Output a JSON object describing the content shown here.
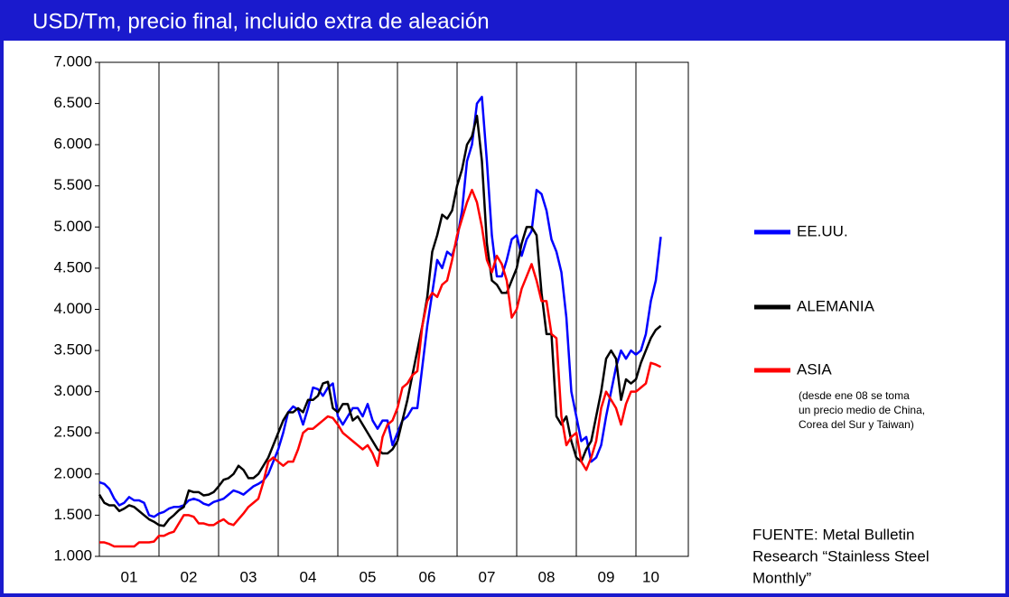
{
  "chart_data": {
    "type": "line",
    "title": "USD/Tm, precio final, incluido extra de aleación",
    "categories": [
      null,
      null,
      null,
      null,
      null,
      null,
      "01",
      null,
      null,
      null,
      null,
      null,
      null,
      null,
      null,
      null,
      null,
      null,
      "02",
      null,
      null,
      null,
      null,
      null,
      null,
      null,
      null,
      null,
      null,
      null,
      "03",
      null,
      null,
      null,
      null,
      null,
      null,
      null,
      null,
      null,
      null,
      null,
      "04",
      null,
      null,
      null,
      null,
      null,
      null,
      null,
      null,
      null,
      null,
      null,
      "05",
      null,
      null,
      null,
      null,
      null,
      null,
      null,
      null,
      null,
      null,
      null,
      "06",
      null,
      null,
      null,
      null,
      null,
      null,
      null,
      null,
      null,
      null,
      null,
      "07",
      null,
      null,
      null,
      null,
      null,
      null,
      null,
      null,
      null,
      null,
      null,
      "08",
      null,
      null,
      null,
      null,
      null,
      null,
      null,
      null,
      null,
      null,
      null,
      "09",
      null,
      null,
      null,
      null,
      null,
      null,
      null,
      null,
      "10",
      null,
      null
    ],
    "series": [
      {
        "name": "EE.UU.",
        "color": "#0000ff",
        "values": [
          1900,
          1880,
          1820,
          1700,
          1620,
          1650,
          1720,
          1680,
          1680,
          1650,
          1500,
          1480,
          1520,
          1540,
          1580,
          1600,
          1600,
          1620,
          1680,
          1700,
          1680,
          1640,
          1620,
          1660,
          1680,
          1700,
          1750,
          1800,
          1780,
          1750,
          1800,
          1850,
          1880,
          1920,
          2000,
          2150,
          2300,
          2500,
          2750,
          2820,
          2780,
          2600,
          2800,
          3050,
          3030,
          2950,
          3050,
          3100,
          2700,
          2600,
          2700,
          2800,
          2800,
          2700,
          2850,
          2650,
          2550,
          2650,
          2650,
          2350,
          2500,
          2650,
          2700,
          2800,
          2800,
          3300,
          3800,
          4200,
          4600,
          4500,
          4700,
          4650,
          4850,
          5200,
          5800,
          6000,
          6500,
          6580,
          5800,
          4900,
          4400,
          4400,
          4600,
          4850,
          4900,
          4650,
          4850,
          4950,
          5450,
          5400,
          5200,
          4850,
          4700,
          4450,
          3900,
          3000,
          2700,
          2400,
          2450,
          2150,
          2200,
          2350,
          2700,
          3000,
          3300,
          3500,
          3400,
          3500,
          3450,
          3500,
          3700,
          4100,
          4350,
          4880
        ]
      },
      {
        "name": "ALEMANIA",
        "color": "#000000",
        "values": [
          1750,
          1650,
          1620,
          1620,
          1550,
          1580,
          1620,
          1600,
          1550,
          1500,
          1450,
          1420,
          1380,
          1370,
          1450,
          1500,
          1560,
          1600,
          1800,
          1780,
          1780,
          1740,
          1750,
          1780,
          1850,
          1930,
          1950,
          2000,
          2100,
          2050,
          1950,
          1950,
          2000,
          2100,
          2200,
          2350,
          2500,
          2650,
          2750,
          2750,
          2800,
          2750,
          2900,
          2900,
          2950,
          3100,
          3120,
          2800,
          2750,
          2850,
          2850,
          2650,
          2700,
          2600,
          2500,
          2400,
          2300,
          2250,
          2250,
          2300,
          2400,
          2650,
          2900,
          3200,
          3500,
          3800,
          4150,
          4700,
          4900,
          5150,
          5100,
          5200,
          5500,
          5700,
          6000,
          6100,
          6350,
          5800,
          4800,
          4350,
          4300,
          4200,
          4200,
          4350,
          4500,
          4800,
          5000,
          5000,
          4900,
          4200,
          3700,
          3700,
          2700,
          2600,
          2700,
          2400,
          2200,
          2150,
          2300,
          2400,
          2700,
          3000,
          3400,
          3500,
          3400,
          2900,
          3150,
          3100,
          3150,
          3350,
          3500,
          3650,
          3750,
          3800
        ]
      },
      {
        "name": "ASIA",
        "color": "#ff0000",
        "values": [
          1170,
          1170,
          1150,
          1120,
          1120,
          1120,
          1120,
          1120,
          1170,
          1170,
          1170,
          1180,
          1250,
          1250,
          1280,
          1300,
          1400,
          1500,
          1500,
          1480,
          1400,
          1400,
          1380,
          1380,
          1420,
          1450,
          1400,
          1380,
          1450,
          1520,
          1600,
          1650,
          1700,
          1900,
          2150,
          2200,
          2150,
          2100,
          2150,
          2150,
          2300,
          2500,
          2550,
          2550,
          2600,
          2650,
          2700,
          2680,
          2600,
          2500,
          2450,
          2400,
          2350,
          2300,
          2350,
          2250,
          2100,
          2450,
          2600,
          2650,
          2800,
          3050,
          3100,
          3200,
          3250,
          3800,
          4100,
          4200,
          4150,
          4300,
          4350,
          4600,
          4900,
          5100,
          5300,
          5450,
          5300,
          5000,
          4600,
          4450,
          4650,
          4550,
          4350,
          3900,
          4000,
          4250,
          4400,
          4550,
          4350,
          4100,
          4100,
          3700,
          3650,
          2700,
          2350,
          2450,
          2500,
          2150,
          2050,
          2200,
          2400,
          2800,
          3000,
          2900,
          2800,
          2600,
          2850,
          3000,
          3000,
          3050,
          3100,
          3350,
          3330,
          3300
        ]
      }
    ],
    "legend_note": [
      "(desde ene 08 se toma",
      "un precio medio de China,",
      "Corea del Sur y Taiwan)"
    ],
    "source": [
      "FUENTE: Metal Bulletin",
      "Research “Stainless Steel",
      "Monthly”"
    ],
    "ylim": [
      1000,
      7000
    ],
    "yticks": [
      {
        "value": 1000,
        "label": "1.000"
      },
      {
        "value": 1500,
        "label": "1.500"
      },
      {
        "value": 2000,
        "label": "2.000"
      },
      {
        "value": 2500,
        "label": "2.500"
      },
      {
        "value": 3000,
        "label": "3.000"
      },
      {
        "value": 3500,
        "label": "3.500"
      },
      {
        "value": 4000,
        "label": "4.000"
      },
      {
        "value": 4500,
        "label": "4.500"
      },
      {
        "value": 5000,
        "label": "5.000"
      },
      {
        "value": 5500,
        "label": "5.500"
      },
      {
        "value": 6000,
        "label": "6.000"
      },
      {
        "value": 6500,
        "label": "6.500"
      },
      {
        "value": 7000,
        "label": "7.000"
      }
    ],
    "grid": false,
    "legend": "right"
  }
}
